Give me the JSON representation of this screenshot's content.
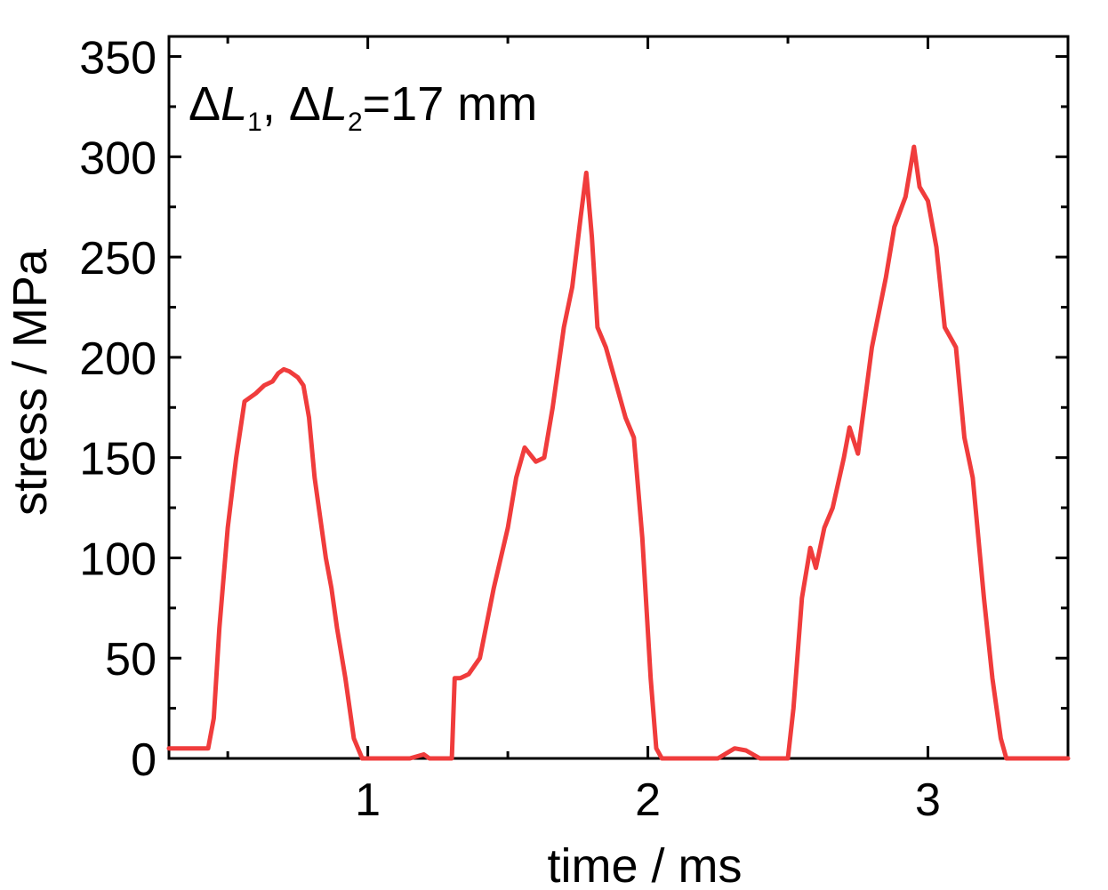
{
  "chart_data": {
    "type": "line",
    "xlabel": "time / ms",
    "ylabel": "stress / MPa",
    "xlim": [
      0.29,
      3.5
    ],
    "ylim": [
      0,
      360
    ],
    "x_ticks": [
      1,
      2,
      3
    ],
    "x_tick_labels": [
      "1",
      "2",
      "3"
    ],
    "x_minor_ticks": [
      0.5,
      1.5,
      2.5,
      3.5
    ],
    "y_ticks": [
      0,
      50,
      100,
      150,
      200,
      250,
      300,
      350
    ],
    "y_tick_labels": [
      "0",
      "50",
      "100",
      "150",
      "200",
      "250",
      "300",
      "350"
    ],
    "y_minor_ticks": [
      25,
      75,
      125,
      175,
      225,
      275,
      325
    ],
    "grid": false,
    "annotation": {
      "delta1": "Δ",
      "l1": "L",
      "sub1": "1",
      "sep": ", ",
      "delta2": "Δ",
      "l2": "L",
      "sub2": "2",
      "rest": "=17 mm"
    },
    "series": [
      {
        "color": "#f03c3c",
        "x": [
          0.29,
          0.4,
          0.43,
          0.45,
          0.47,
          0.5,
          0.53,
          0.56,
          0.6,
          0.63,
          0.66,
          0.68,
          0.7,
          0.72,
          0.75,
          0.77,
          0.79,
          0.81,
          0.83,
          0.85,
          0.87,
          0.89,
          0.92,
          0.95,
          0.98,
          1.0,
          1.02,
          1.05,
          1.1,
          1.15,
          1.2,
          1.22,
          1.25,
          1.3,
          1.31,
          1.33,
          1.36,
          1.4,
          1.45,
          1.5,
          1.53,
          1.56,
          1.6,
          1.63,
          1.66,
          1.7,
          1.73,
          1.76,
          1.78,
          1.8,
          1.82,
          1.85,
          1.88,
          1.92,
          1.95,
          1.98,
          2.01,
          2.03,
          2.05,
          2.08,
          2.15,
          2.25,
          2.31,
          2.35,
          2.4,
          2.5,
          2.52,
          2.55,
          2.58,
          2.6,
          2.63,
          2.66,
          2.7,
          2.72,
          2.75,
          2.8,
          2.85,
          2.88,
          2.92,
          2.95,
          2.97,
          3.0,
          3.03,
          3.06,
          3.1,
          3.13,
          3.16,
          3.2,
          3.23,
          3.26,
          3.28,
          3.5
        ],
        "y": [
          5,
          5,
          5,
          20,
          65,
          115,
          150,
          178,
          182,
          186,
          188,
          192,
          194,
          193,
          190,
          186,
          170,
          140,
          120,
          100,
          85,
          65,
          40,
          10,
          0,
          0,
          0,
          0,
          0,
          0,
          2,
          0,
          0,
          0,
          40,
          40,
          42,
          50,
          85,
          115,
          140,
          155,
          148,
          150,
          175,
          215,
          235,
          270,
          292,
          260,
          215,
          205,
          190,
          170,
          160,
          110,
          40,
          5,
          0,
          0,
          0,
          0,
          5,
          4,
          0,
          0,
          25,
          80,
          105,
          95,
          115,
          125,
          150,
          165,
          152,
          205,
          240,
          265,
          280,
          305,
          285,
          278,
          255,
          215,
          205,
          160,
          140,
          80,
          40,
          10,
          0,
          0
        ]
      }
    ]
  }
}
